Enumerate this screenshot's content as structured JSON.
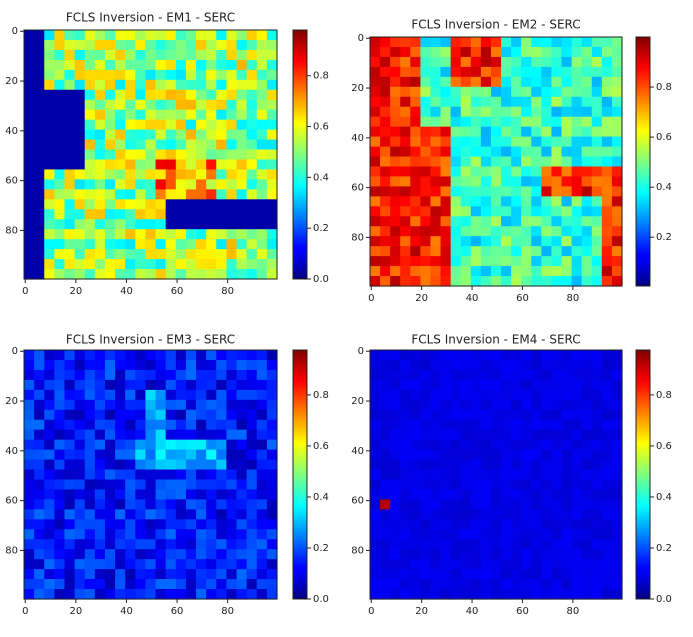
{
  "chart_data": [
    {
      "type": "image",
      "title": "FCLS Inversion - EM1 - SERC",
      "xlim": [
        -0.5,
        99.5
      ],
      "ylim": [
        99.5,
        -0.5
      ],
      "xticks": [
        0,
        20,
        40,
        60,
        80
      ],
      "yticks": [
        0,
        20,
        40,
        60,
        80
      ],
      "colormap": "jet",
      "clim": [
        0,
        0.98
      ],
      "cticks": [
        {
          "value": 0,
          "label": "0.0"
        },
        {
          "value": 0.2,
          "label": "0.2"
        },
        {
          "value": 0.4,
          "label": "0.4"
        },
        {
          "value": 0.6,
          "label": "0.6"
        },
        {
          "value": 0.8,
          "label": "0.8"
        }
      ]
    },
    {
      "type": "image",
      "title": "FCLS Inversion - EM2 - SERC",
      "xlim": [
        -0.5,
        99.5
      ],
      "ylim": [
        99.5,
        -0.5
      ],
      "xticks": [
        0,
        20,
        40,
        60,
        80
      ],
      "yticks": [
        0,
        20,
        40,
        60,
        80
      ],
      "colormap": "jet",
      "clim": [
        0.005,
        1.0
      ],
      "cticks": [
        {
          "value": 0.2,
          "label": "0.2"
        },
        {
          "value": 0.4,
          "label": "0.4"
        },
        {
          "value": 0.6,
          "label": "0.6"
        },
        {
          "value": 0.8,
          "label": "0.8"
        }
      ]
    },
    {
      "type": "image",
      "title": "FCLS Inversion - EM3 - SERC",
      "xlim": [
        -0.5,
        99.5
      ],
      "ylim": [
        99.5,
        -0.5
      ],
      "xticks": [
        0,
        20,
        40,
        60,
        80
      ],
      "yticks": [
        0,
        20,
        40,
        60,
        80
      ],
      "colormap": "jet",
      "clim": [
        0,
        0.976
      ],
      "cticks": [
        {
          "value": 0,
          "label": "0.0"
        },
        {
          "value": 0.2,
          "label": "0.2"
        },
        {
          "value": 0.4,
          "label": "0.4"
        },
        {
          "value": 0.6,
          "label": "0.6"
        },
        {
          "value": 0.8,
          "label": "0.8"
        }
      ]
    },
    {
      "type": "image",
      "title": "FCLS Inversion - EM4 - SERC",
      "xlim": [
        -0.5,
        99.5
      ],
      "ylim": [
        99.5,
        -0.5
      ],
      "xticks": [
        0,
        20,
        40,
        60,
        80
      ],
      "yticks": [
        0,
        20,
        40,
        60,
        80
      ],
      "colormap": "jet",
      "clim": [
        0,
        0.976
      ],
      "cticks": [
        {
          "value": 0,
          "label": "0.0"
        },
        {
          "value": 0.2,
          "label": "0.2"
        },
        {
          "value": 0.4,
          "label": "0.4"
        },
        {
          "value": 0.6,
          "label": "0.6"
        },
        {
          "value": 0.8,
          "label": "0.8"
        }
      ]
    }
  ]
}
